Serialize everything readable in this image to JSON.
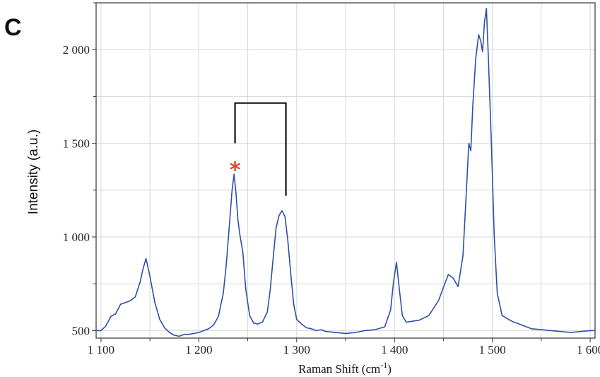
{
  "panel_label": "C",
  "colors": {
    "series": "#2d4fa8",
    "grid": "#d7d7d7",
    "axis": "#333333",
    "bracket": "#111111",
    "star": "#e8452a"
  },
  "chart_data": {
    "type": "line",
    "title": "",
    "xlabel": "Raman Shift (cm",
    "xlabel_sup": "-1",
    "xlabel_end": ")",
    "ylabel": "Intensity (a.u.)",
    "xlim": [
      1095,
      1605
    ],
    "ylim": [
      460,
      2250
    ],
    "x_ticks": [
      1100,
      1200,
      1300,
      1400,
      1500,
      1600
    ],
    "x_tick_labels": [
      "1 100",
      "1 200",
      "1 300",
      "1 400",
      "1 500",
      "1 600"
    ],
    "y_ticks": [
      500,
      1000,
      1500,
      2000
    ],
    "y_tick_labels": [
      "500",
      "1 000",
      "1 500",
      "2 000"
    ],
    "grid": true,
    "annotations": [
      {
        "type": "marker",
        "label": "*",
        "x": 1237,
        "y": 1395
      },
      {
        "type": "bracket",
        "x1": 1237,
        "x2": 1289,
        "y_top": 1715,
        "y1_end": 1500,
        "y2_end": 1220
      }
    ],
    "series": [
      {
        "x": [
          1095,
          1100,
          1105,
          1110,
          1115,
          1120,
          1125,
          1130,
          1135,
          1140,
          1143,
          1146,
          1150,
          1155,
          1160,
          1165,
          1170,
          1175,
          1180,
          1185,
          1190,
          1195,
          1200,
          1205,
          1210,
          1215,
          1220,
          1225,
          1228,
          1231,
          1234,
          1236,
          1238,
          1240,
          1242,
          1245,
          1248,
          1252,
          1256,
          1260,
          1265,
          1270,
          1273,
          1276,
          1279,
          1282,
          1285,
          1288,
          1291,
          1294,
          1297,
          1300,
          1305,
          1310,
          1315,
          1320,
          1325,
          1330,
          1340,
          1350,
          1360,
          1370,
          1380,
          1390,
          1396,
          1399,
          1402,
          1405,
          1408,
          1412,
          1418,
          1425,
          1435,
          1445,
          1450,
          1455,
          1460,
          1465,
          1470,
          1473,
          1476,
          1478,
          1480,
          1483,
          1486,
          1488,
          1490,
          1492,
          1494,
          1496,
          1499,
          1502,
          1505,
          1510,
          1520,
          1530,
          1540,
          1550,
          1560,
          1570,
          1580,
          1590,
          1600,
          1605
        ],
        "y": [
          500,
          500,
          525,
          575,
          590,
          640,
          650,
          660,
          680,
          760,
          830,
          885,
          790,
          650,
          560,
          515,
          490,
          475,
          470,
          480,
          480,
          485,
          490,
          500,
          510,
          530,
          575,
          700,
          850,
          1050,
          1250,
          1335,
          1230,
          1090,
          1010,
          920,
          720,
          580,
          540,
          535,
          545,
          600,
          720,
          890,
          1050,
          1115,
          1140,
          1110,
          980,
          800,
          640,
          560,
          535,
          515,
          510,
          500,
          505,
          495,
          490,
          485,
          490,
          500,
          505,
          520,
          610,
          760,
          865,
          720,
          580,
          545,
          550,
          555,
          580,
          660,
          730,
          800,
          780,
          735,
          900,
          1200,
          1500,
          1460,
          1700,
          1950,
          2080,
          2050,
          1990,
          2150,
          2220,
          1950,
          1500,
          1000,
          700,
          580,
          550,
          530,
          510,
          505,
          500,
          495,
          490,
          495,
          500,
          500
        ]
      }
    ]
  }
}
